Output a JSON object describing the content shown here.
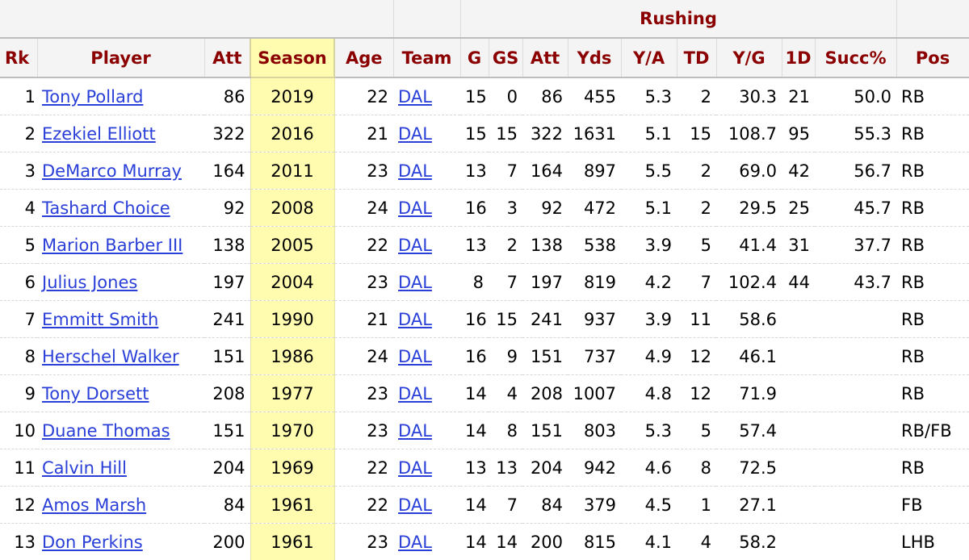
{
  "table": {
    "group_header": "Rushing",
    "columns": [
      "Rk",
      "Player",
      "Att",
      "Season",
      "Age",
      "Team",
      "G",
      "GS",
      "Att",
      "Yds",
      "Y/A",
      "TD",
      "Y/G",
      "1D",
      "Succ%",
      "Pos"
    ],
    "rows": [
      {
        "rk": "1",
        "player": "Tony Pollard",
        "att": "86",
        "season": "2019",
        "age": "22",
        "team": "DAL",
        "g": "15",
        "gs": "0",
        "rush_att": "86",
        "yds": "455",
        "ya": "5.3",
        "td": "2",
        "yg": "30.3",
        "first_downs": "21",
        "succ": "50.0",
        "pos": "RB"
      },
      {
        "rk": "2",
        "player": "Ezekiel Elliott",
        "att": "322",
        "season": "2016",
        "age": "21",
        "team": "DAL",
        "g": "15",
        "gs": "15",
        "rush_att": "322",
        "yds": "1631",
        "ya": "5.1",
        "td": "15",
        "yg": "108.7",
        "first_downs": "95",
        "succ": "55.3",
        "pos": "RB"
      },
      {
        "rk": "3",
        "player": "DeMarco Murray",
        "att": "164",
        "season": "2011",
        "age": "23",
        "team": "DAL",
        "g": "13",
        "gs": "7",
        "rush_att": "164",
        "yds": "897",
        "ya": "5.5",
        "td": "2",
        "yg": "69.0",
        "first_downs": "42",
        "succ": "56.7",
        "pos": "RB"
      },
      {
        "rk": "4",
        "player": "Tashard Choice",
        "att": "92",
        "season": "2008",
        "age": "24",
        "team": "DAL",
        "g": "16",
        "gs": "3",
        "rush_att": "92",
        "yds": "472",
        "ya": "5.1",
        "td": "2",
        "yg": "29.5",
        "first_downs": "25",
        "succ": "45.7",
        "pos": "RB"
      },
      {
        "rk": "5",
        "player": "Marion Barber III",
        "att": "138",
        "season": "2005",
        "age": "22",
        "team": "DAL",
        "g": "13",
        "gs": "2",
        "rush_att": "138",
        "yds": "538",
        "ya": "3.9",
        "td": "5",
        "yg": "41.4",
        "first_downs": "31",
        "succ": "37.7",
        "pos": "RB"
      },
      {
        "rk": "6",
        "player": "Julius Jones",
        "att": "197",
        "season": "2004",
        "age": "23",
        "team": "DAL",
        "g": "8",
        "gs": "7",
        "rush_att": "197",
        "yds": "819",
        "ya": "4.2",
        "td": "7",
        "yg": "102.4",
        "first_downs": "44",
        "succ": "43.7",
        "pos": "RB"
      },
      {
        "rk": "7",
        "player": "Emmitt Smith",
        "att": "241",
        "season": "1990",
        "age": "21",
        "team": "DAL",
        "g": "16",
        "gs": "15",
        "rush_att": "241",
        "yds": "937",
        "ya": "3.9",
        "td": "11",
        "yg": "58.6",
        "first_downs": "",
        "succ": "",
        "pos": "RB"
      },
      {
        "rk": "8",
        "player": "Herschel Walker",
        "att": "151",
        "season": "1986",
        "age": "24",
        "team": "DAL",
        "g": "16",
        "gs": "9",
        "rush_att": "151",
        "yds": "737",
        "ya": "4.9",
        "td": "12",
        "yg": "46.1",
        "first_downs": "",
        "succ": "",
        "pos": "RB"
      },
      {
        "rk": "9",
        "player": "Tony Dorsett",
        "att": "208",
        "season": "1977",
        "age": "23",
        "team": "DAL",
        "g": "14",
        "gs": "4",
        "rush_att": "208",
        "yds": "1007",
        "ya": "4.8",
        "td": "12",
        "yg": "71.9",
        "first_downs": "",
        "succ": "",
        "pos": "RB"
      },
      {
        "rk": "10",
        "player": "Duane Thomas",
        "att": "151",
        "season": "1970",
        "age": "23",
        "team": "DAL",
        "g": "14",
        "gs": "8",
        "rush_att": "151",
        "yds": "803",
        "ya": "5.3",
        "td": "5",
        "yg": "57.4",
        "first_downs": "",
        "succ": "",
        "pos": "RB/FB"
      },
      {
        "rk": "11",
        "player": "Calvin Hill",
        "att": "204",
        "season": "1969",
        "age": "22",
        "team": "DAL",
        "g": "13",
        "gs": "13",
        "rush_att": "204",
        "yds": "942",
        "ya": "4.6",
        "td": "8",
        "yg": "72.5",
        "first_downs": "",
        "succ": "",
        "pos": "RB"
      },
      {
        "rk": "12",
        "player": "Amos Marsh",
        "att": "84",
        "season": "1961",
        "age": "22",
        "team": "DAL",
        "g": "14",
        "gs": "7",
        "rush_att": "84",
        "yds": "379",
        "ya": "4.5",
        "td": "1",
        "yg": "27.1",
        "first_downs": "",
        "succ": "",
        "pos": "FB"
      },
      {
        "rk": "13",
        "player": "Don Perkins",
        "att": "200",
        "season": "1961",
        "age": "23",
        "team": "DAL",
        "g": "14",
        "gs": "14",
        "rush_att": "200",
        "yds": "815",
        "ya": "4.1",
        "td": "4",
        "yg": "58.2",
        "first_downs": "",
        "succ": "",
        "pos": "LHB"
      }
    ]
  },
  "colors": {
    "header_text": "#8b0000",
    "link": "#2a3fd8",
    "sorted_column_bg": "#fffcb0",
    "header_bg": "#f4f4f4"
  }
}
